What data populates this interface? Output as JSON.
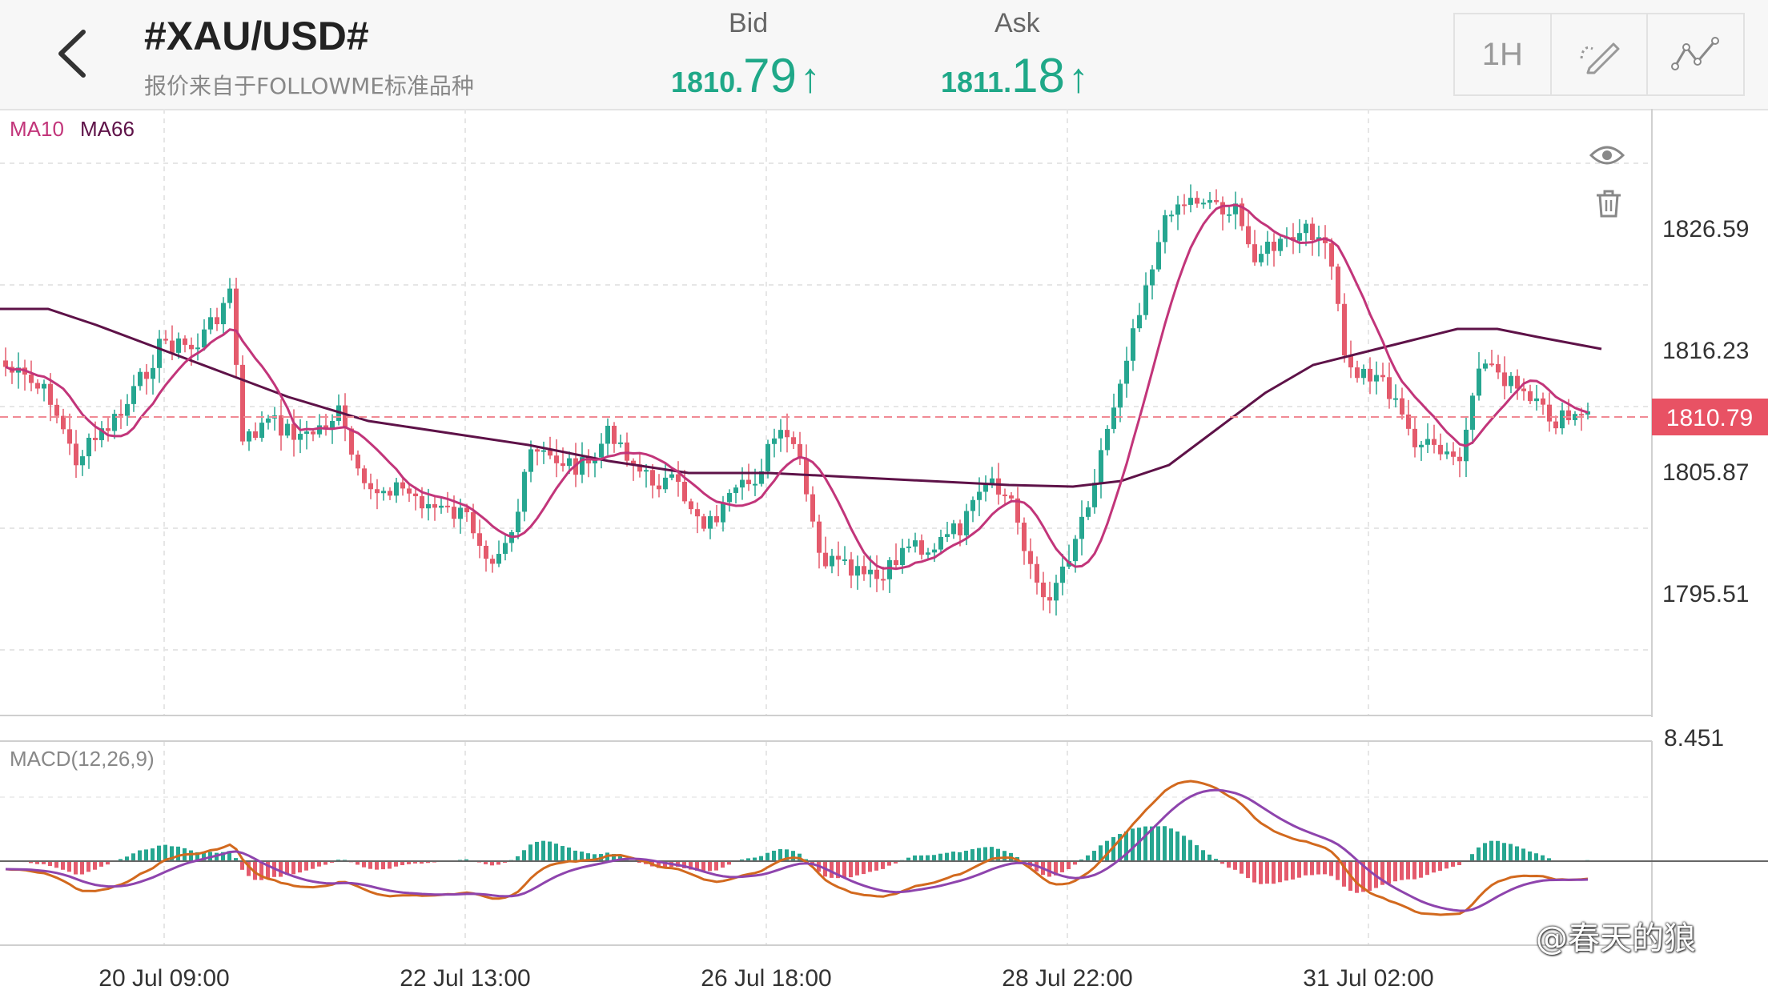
{
  "header": {
    "symbol": "#XAU/USD#",
    "source": "报价来自于FOLLOWME标准品种",
    "bid": {
      "label": "Bid",
      "small": "1810.",
      "big": "79",
      "arrow": "↑"
    },
    "ask": {
      "label": "Ask",
      "small": "1811.",
      "big": "18",
      "arrow": "↑"
    },
    "tools": {
      "timeframe": "1H",
      "draw_icon": "pencil-ruler-icon",
      "indicator_icon": "line-chart-icon"
    },
    "back_icon": "chevron-left-icon"
  },
  "main_panel": {
    "indicators": [
      {
        "name": "MA10",
        "color": "#c2357a"
      },
      {
        "name": "MA66",
        "color": "#5e1248"
      }
    ],
    "eye_icon": "eye-icon",
    "trash_icon": "trash-icon",
    "price_labels": [
      "1826.59",
      "1816.23",
      "1805.87",
      "1795.51"
    ],
    "current_price": "1810.79"
  },
  "macd_panel": {
    "label": "MACD(12,26,9)",
    "top_value": "8.451"
  },
  "x_labels": [
    "20 Jul 09:00",
    "22 Jul 13:00",
    "26 Jul 18:00",
    "28 Jul 22:00",
    "31 Jul 02:00"
  ],
  "colors": {
    "up": "#26a690",
    "down": "#e45a6c",
    "accent": "#1fa888",
    "ma10": "#c2357a",
    "ma66": "#5e1248",
    "macd": "#d2691e",
    "signal": "#8e44ad"
  },
  "watermark": "@春天的狼"
}
